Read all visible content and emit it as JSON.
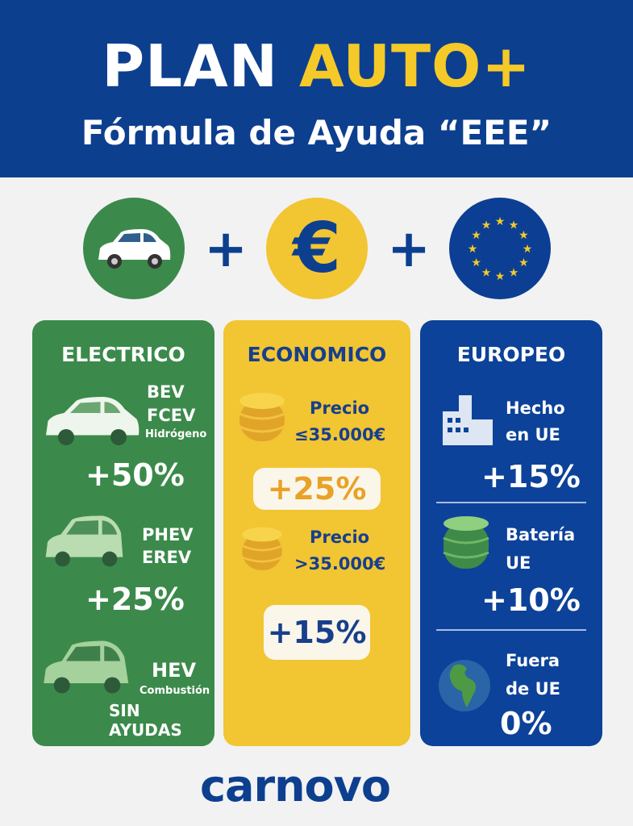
{
  "header": {
    "title_part1": "PLAN ",
    "title_part2": "AUTO+",
    "subtitle": "Fórmula de Ayuda “EEE”"
  },
  "formula": {
    "icons": [
      "car-icon",
      "euro-icon",
      "eu-flag-icon"
    ],
    "operator": "+"
  },
  "columns": {
    "electrico": {
      "title": "ELECTRICO",
      "items": [
        {
          "lines": [
            "BEV",
            "FCEV"
          ],
          "sub": "Hidrógeno",
          "value": "+50%"
        },
        {
          "lines": [
            "PHEV",
            "EREV"
          ],
          "value": "+25%"
        },
        {
          "lines": [
            "HEV"
          ],
          "sub": "Combustión",
          "value": "SIN AYUDAS"
        }
      ]
    },
    "economico": {
      "title": "ECONOMICO",
      "items": [
        {
          "lines": [
            "Precio",
            "≤35.000€"
          ],
          "value": "+25%"
        },
        {
          "lines": [
            "Precio",
            ">35.000€"
          ],
          "value": "+15%"
        }
      ]
    },
    "europeo": {
      "title": "EUROPEO",
      "items": [
        {
          "lines": [
            "Hecho",
            "en UE"
          ],
          "value": "+15%"
        },
        {
          "lines": [
            "Batería",
            "UE"
          ],
          "value": "+10%"
        },
        {
          "lines": [
            "Fuera",
            "de UE"
          ],
          "value": "0%"
        }
      ]
    }
  },
  "logo": {
    "text": "carnovo"
  },
  "colors": {
    "banner": "#0d3f8f",
    "green": "#3b8a4b",
    "yellow": "#f2c532",
    "blue": "#0c4299",
    "accent_yellow": "#f5c928"
  }
}
